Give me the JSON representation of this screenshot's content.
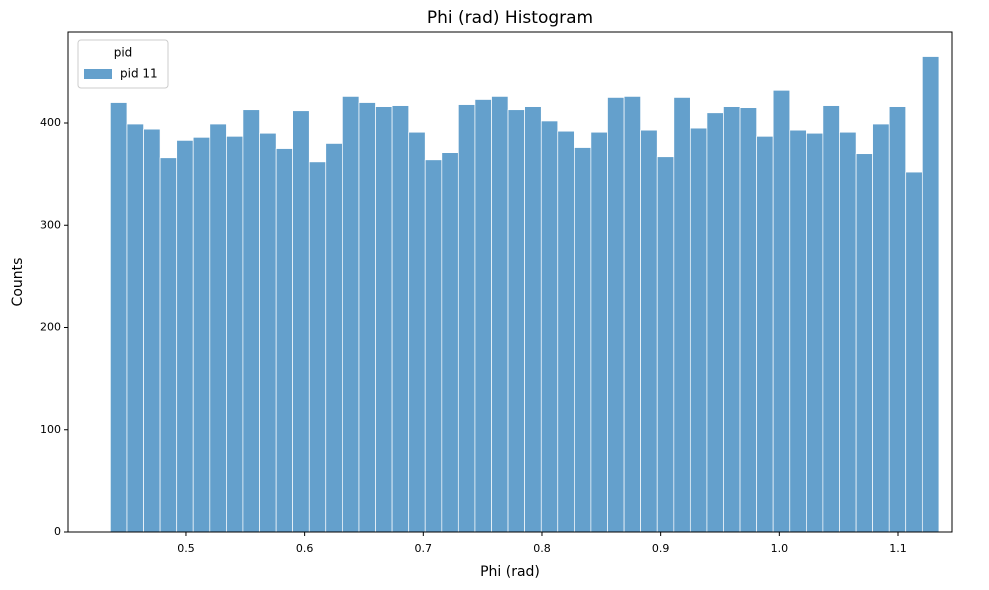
{
  "chart_data": {
    "type": "histogram",
    "title": "Phi (rad) Histogram",
    "x_label": "Phi (rad)",
    "y_label": "Counts",
    "legend_title": "pid",
    "legend_position": "upper left",
    "series": [
      {
        "name": "pid 11",
        "color": "#64a0cc",
        "values": [
          420,
          399,
          394,
          366,
          383,
          386,
          399,
          387,
          413,
          390,
          375,
          412,
          362,
          380,
          426,
          420,
          416,
          417,
          391,
          364,
          371,
          418,
          423,
          426,
          413,
          416,
          402,
          392,
          376,
          391,
          425,
          426,
          393,
          367,
          425,
          395,
          410,
          416,
          415,
          387,
          432,
          393,
          390,
          417,
          391,
          370,
          399,
          416,
          352,
          465
        ]
      }
    ],
    "bins": [
      0.4363,
      0.4503,
      0.4643,
      0.4782,
      0.4922,
      0.5061,
      0.5201,
      0.5341,
      0.548,
      0.562,
      0.576,
      0.5899,
      0.6039,
      0.6178,
      0.6318,
      0.6458,
      0.6597,
      0.6737,
      0.6877,
      0.7016,
      0.7156,
      0.7295,
      0.7435,
      0.7575,
      0.7714,
      0.7854,
      0.7994,
      0.8133,
      0.8273,
      0.8412,
      0.8552,
      0.8692,
      0.8831,
      0.8971,
      0.9111,
      0.925,
      0.939,
      0.9529,
      0.9669,
      0.9809,
      0.9948,
      1.0088,
      1.0228,
      1.0367,
      1.0507,
      1.0647,
      1.0786,
      1.0926,
      1.1065,
      1.1205,
      1.1345
    ],
    "xlim": [
      0.4006,
      1.1455
    ],
    "xticks": [
      0.5,
      0.6,
      0.7,
      0.8,
      0.9,
      {
        "value": 1,
        "label": "1.0"
      },
      1.1
    ],
    "ylim": [
      0,
      489
    ],
    "yticks": [
      0,
      100,
      200,
      300,
      400
    ]
  }
}
